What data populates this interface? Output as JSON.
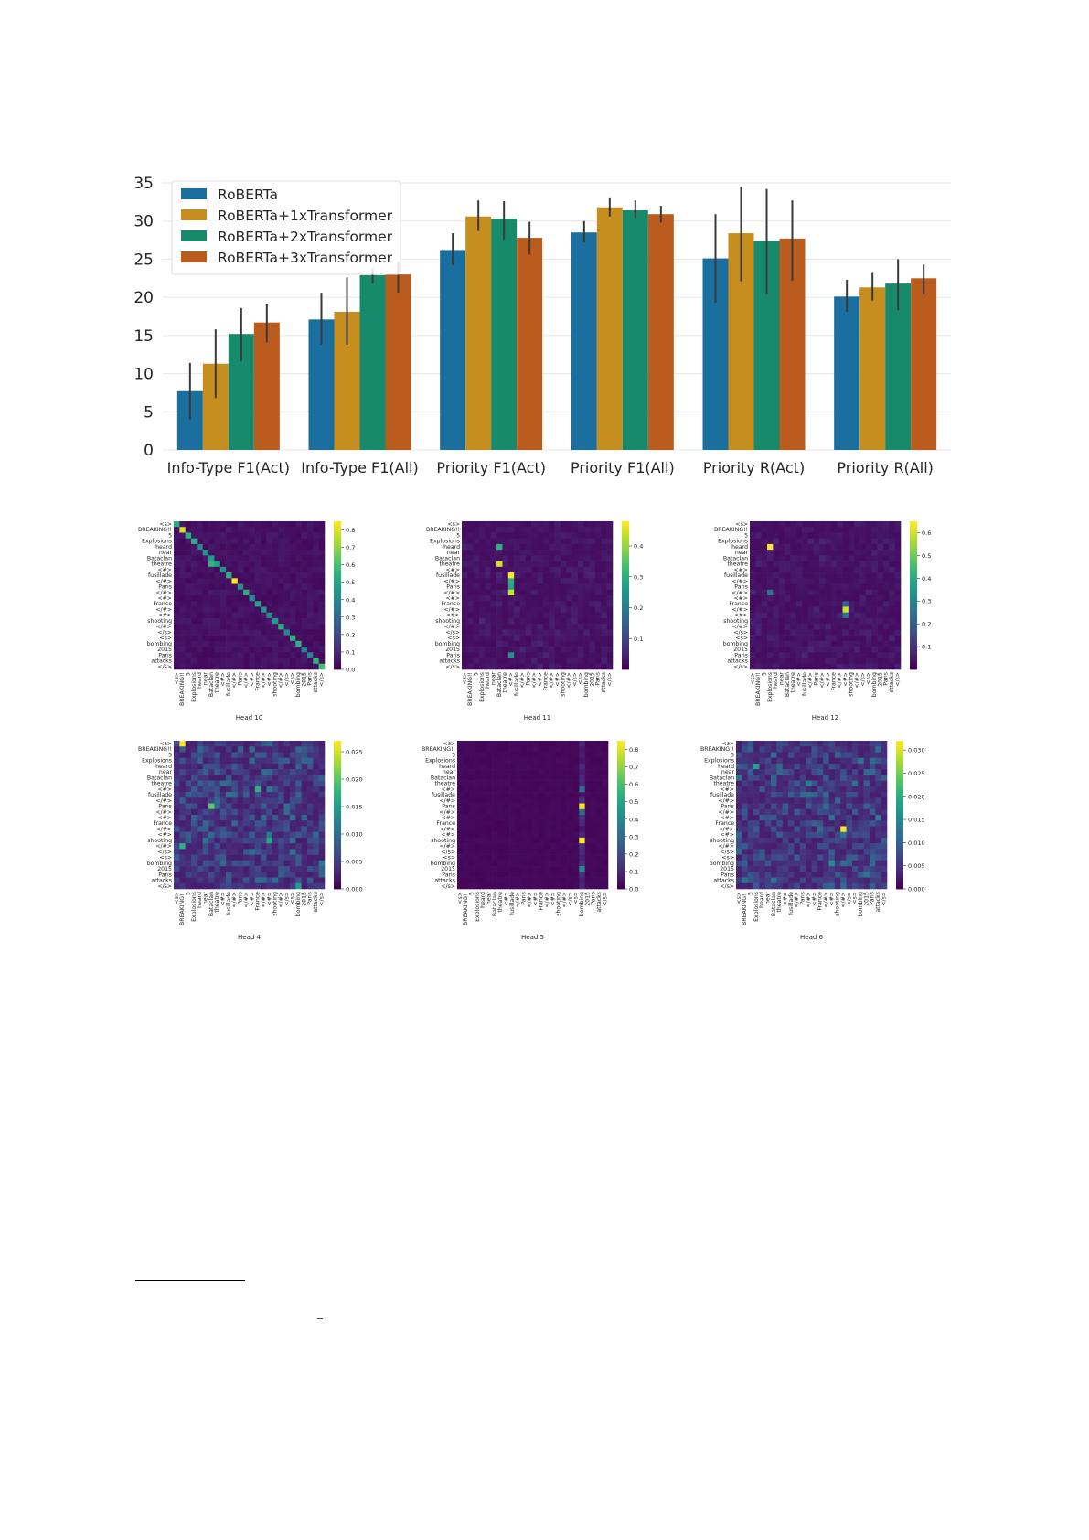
{
  "chart_data": [
    {
      "type": "bar",
      "categories": [
        "Info-Type F1(Act)",
        "Info-Type F1(All)",
        "Priority F1(Act)",
        "Priority F1(All)",
        "Priority R(Act)",
        "Priority R(All)"
      ],
      "ylim": [
        0,
        35
      ],
      "yticks": [
        0,
        5,
        10,
        15,
        20,
        25,
        30,
        35
      ],
      "grid": true,
      "legend_position": "top-left",
      "series": [
        {
          "name": "RoBERTa",
          "color": "#1a6f9f",
          "values": [
            7.7,
            17.1,
            26.2,
            28.5,
            25.1,
            20.1
          ],
          "err_low": [
            4.0,
            13.8,
            24.2,
            27.2,
            19.3,
            18.1
          ],
          "err_high": [
            11.4,
            20.6,
            28.4,
            30.0,
            30.9,
            22.3
          ]
        },
        {
          "name": "RoBERTa+1xTransformer",
          "color": "#c68d1f",
          "values": [
            11.3,
            18.1,
            30.6,
            31.8,
            28.4,
            21.3
          ],
          "err_low": [
            6.8,
            13.8,
            28.7,
            30.6,
            22.1,
            19.6
          ],
          "err_high": [
            15.8,
            22.6,
            32.7,
            33.1,
            34.5,
            23.3
          ]
        },
        {
          "name": "RoBERTa+2xTransformer",
          "color": "#178a6b",
          "values": [
            15.2,
            22.9,
            30.3,
            31.4,
            27.4,
            21.8
          ],
          "err_low": [
            11.6,
            21.8,
            27.6,
            30.4,
            20.4,
            18.3
          ],
          "err_high": [
            18.6,
            23.8,
            32.6,
            32.7,
            34.2,
            25.0
          ]
        },
        {
          "name": "RoBERTa+3xTransformer",
          "color": "#ba5c1e",
          "values": [
            16.7,
            23.0,
            27.8,
            30.9,
            27.7,
            22.5
          ],
          "err_low": [
            14.1,
            20.6,
            25.6,
            29.8,
            22.2,
            20.4
          ],
          "err_high": [
            19.2,
            24.7,
            29.9,
            32.0,
            32.7,
            24.3
          ]
        }
      ]
    },
    {
      "type": "heatmap",
      "title": "Head 10",
      "colorbar_ticks": [
        "0.0",
        "0.1",
        "0.2",
        "0.3",
        "0.4",
        "0.5",
        "0.6",
        "0.7",
        "0.8"
      ],
      "vmax": 0.85,
      "pattern": "diagonal",
      "highlights": [
        [
          1,
          1,
          0.8
        ],
        [
          7,
          6,
          0.55
        ],
        [
          10,
          10,
          0.85
        ],
        [
          15,
          15,
          0.45
        ],
        [
          24,
          24,
          0.55
        ],
        [
          25,
          25,
          0.6
        ]
      ]
    },
    {
      "type": "heatmap",
      "title": "Head 11",
      "colorbar_ticks": [
        "0.1",
        "0.2",
        "0.3",
        "0.4"
      ],
      "vmax": 0.48,
      "pattern": "sparse",
      "highlights": [
        [
          4,
          6,
          0.3
        ],
        [
          7,
          6,
          0.45
        ],
        [
          9,
          8,
          0.48
        ],
        [
          10,
          8,
          0.3
        ],
        [
          11,
          8,
          0.28
        ],
        [
          12,
          8,
          0.44
        ],
        [
          23,
          8,
          0.25
        ],
        [
          26,
          25,
          0.15
        ]
      ]
    },
    {
      "type": "heatmap",
      "title": "Head 12",
      "colorbar_ticks": [
        "0.1",
        "0.2",
        "0.3",
        "0.4",
        "0.5",
        "0.6"
      ],
      "vmax": 0.65,
      "pattern": "sparse",
      "highlights": [
        [
          4,
          3,
          0.65
        ],
        [
          12,
          3,
          0.25
        ],
        [
          15,
          16,
          0.6
        ],
        [
          14,
          16,
          0.2
        ],
        [
          16,
          16,
          0.25
        ]
      ]
    },
    {
      "type": "heatmap",
      "title": "Head 4",
      "colorbar_ticks": [
        "0.000",
        "0.005",
        "0.010",
        "0.015",
        "0.020",
        "0.025"
      ],
      "vmax": 0.027,
      "pattern": "noise",
      "highlights": [
        [
          0,
          1,
          0.027
        ],
        [
          11,
          6,
          0.02
        ],
        [
          8,
          14,
          0.017
        ],
        [
          17,
          16,
          0.016
        ],
        [
          18,
          1,
          0.017
        ],
        [
          25,
          21,
          0.015
        ]
      ]
    },
    {
      "type": "heatmap",
      "title": "Head 5",
      "colorbar_ticks": [
        "0.0",
        "0.1",
        "0.2",
        "0.3",
        "0.4",
        "0.5",
        "0.6",
        "0.7",
        "0.8"
      ],
      "vmax": 0.85,
      "pattern": "column",
      "highlights": [
        [
          11,
          21,
          0.85
        ],
        [
          17,
          21,
          0.85
        ],
        [
          22,
          21,
          0.4
        ],
        [
          12,
          21,
          0.3
        ],
        [
          8,
          21,
          0.3
        ]
      ]
    },
    {
      "type": "heatmap",
      "title": "Head 6",
      "colorbar_ticks": [
        "0.000",
        "0.005",
        "0.010",
        "0.015",
        "0.020",
        "0.025",
        "0.030"
      ],
      "vmax": 0.032,
      "pattern": "noise",
      "highlights": [
        [
          15,
          18,
          0.032
        ],
        [
          4,
          3,
          0.018
        ],
        [
          21,
          16,
          0.016
        ],
        [
          7,
          12,
          0.014
        ]
      ]
    }
  ],
  "heatmap_tokens": [
    "<s>",
    "BREAKING!!",
    "5",
    "Explosions",
    "heard",
    "near",
    "Bataclan",
    "theatre",
    "<#>",
    "fusillade",
    "</#>",
    "Paris",
    "</#>",
    "<#>",
    "France",
    "</#>",
    "<#>",
    "shooting",
    "</#>",
    "</s>",
    "<s>",
    "bombing",
    "2015",
    "Paris",
    "attacks",
    "</s>"
  ],
  "colors": {
    "grid": "#e6e6e6",
    "errorbar": "#3a3a3a",
    "text": "#262626"
  }
}
